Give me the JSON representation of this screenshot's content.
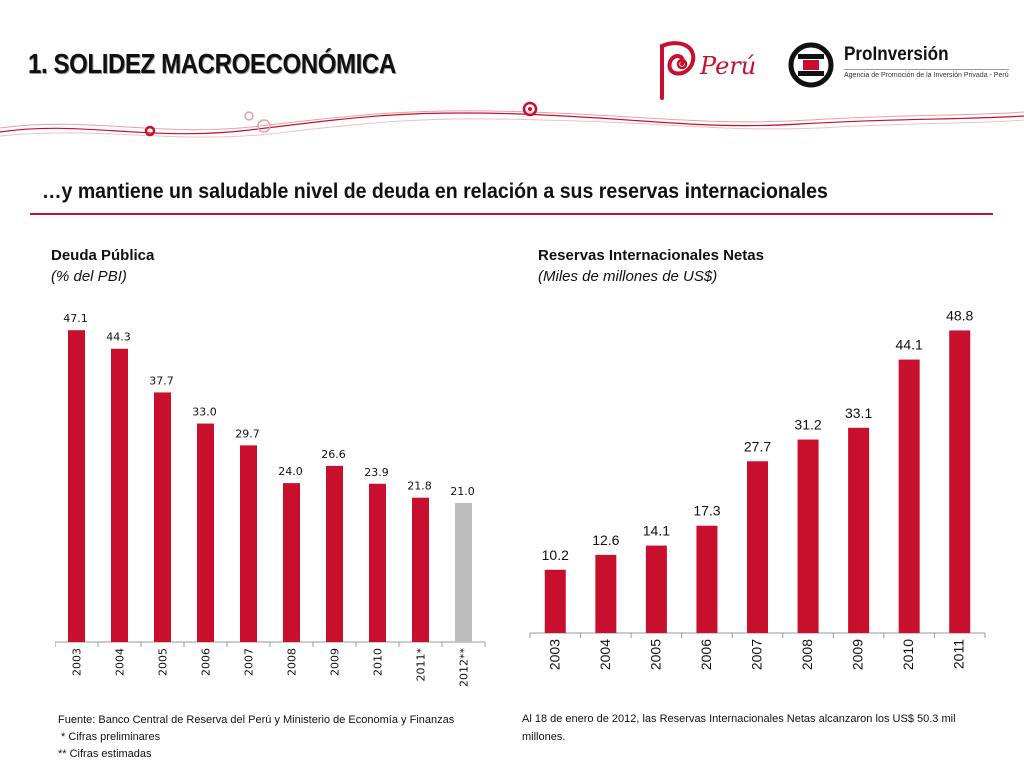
{
  "header": {
    "title": "1. SOLIDEZ MACROECONÓMICA",
    "peru_logo_text": "Perú",
    "proinversion_name": "ProInversión",
    "proinversion_tagline": "Agencia de Promoción de la Inversión Privada - Perú"
  },
  "subtitle": "…y mantiene un saludable nivel de deuda en relación a sus reservas internacionales",
  "left_chart": {
    "title": "Deuda Pública",
    "subtitle": "(% del PBI)",
    "source": "Fuente: Banco Central de Reserva del Perú y Ministerio de Economía y Finanzas",
    "note1": " * Cifras preliminares",
    "note2": "** Cifras estimadas"
  },
  "right_chart": {
    "title": "Reservas Internacionales Netas",
    "subtitle": "(Miles de millones de US$)",
    "note": "Al 18 de enero de 2012, las Reservas Internacionales Netas alcanzaron los US$ 50.3 mil millones."
  },
  "colors": {
    "bar_red": "#c8102e",
    "bar_gray": "#bdbdbd",
    "accent": "#c8102e"
  },
  "chart_data": [
    {
      "type": "bar",
      "title": "Deuda Pública",
      "subtitle": "(% del PBI)",
      "categories": [
        "2003",
        "2004",
        "2005",
        "2006",
        "2007",
        "2008",
        "2009",
        "2010",
        "2011*",
        "2012**"
      ],
      "values": [
        47.1,
        44.3,
        37.7,
        33.0,
        29.7,
        24.0,
        26.6,
        23.9,
        21.8,
        21.0
      ],
      "labels": [
        "47.1",
        "44.3",
        "37.7",
        "33.0",
        "29.7",
        "24.0",
        "26.6",
        "23.9",
        "21.8",
        "21.0"
      ],
      "highlight_last": true,
      "ylim": [
        0,
        50
      ],
      "grid": false
    },
    {
      "type": "bar",
      "title": "Reservas Internacionales Netas",
      "subtitle": "(Miles de millones de US$)",
      "categories": [
        "2003",
        "2004",
        "2005",
        "2006",
        "2007",
        "2008",
        "2009",
        "2010",
        "2011"
      ],
      "values": [
        10.2,
        12.6,
        14.1,
        17.3,
        27.7,
        31.2,
        33.1,
        44.1,
        48.8
      ],
      "labels": [
        "10.2",
        "12.6",
        "14.1",
        "17.3",
        "27.7",
        "31.2",
        "33.1",
        "44.1",
        "48.8"
      ],
      "ylim": [
        0,
        50
      ],
      "grid": false
    }
  ]
}
